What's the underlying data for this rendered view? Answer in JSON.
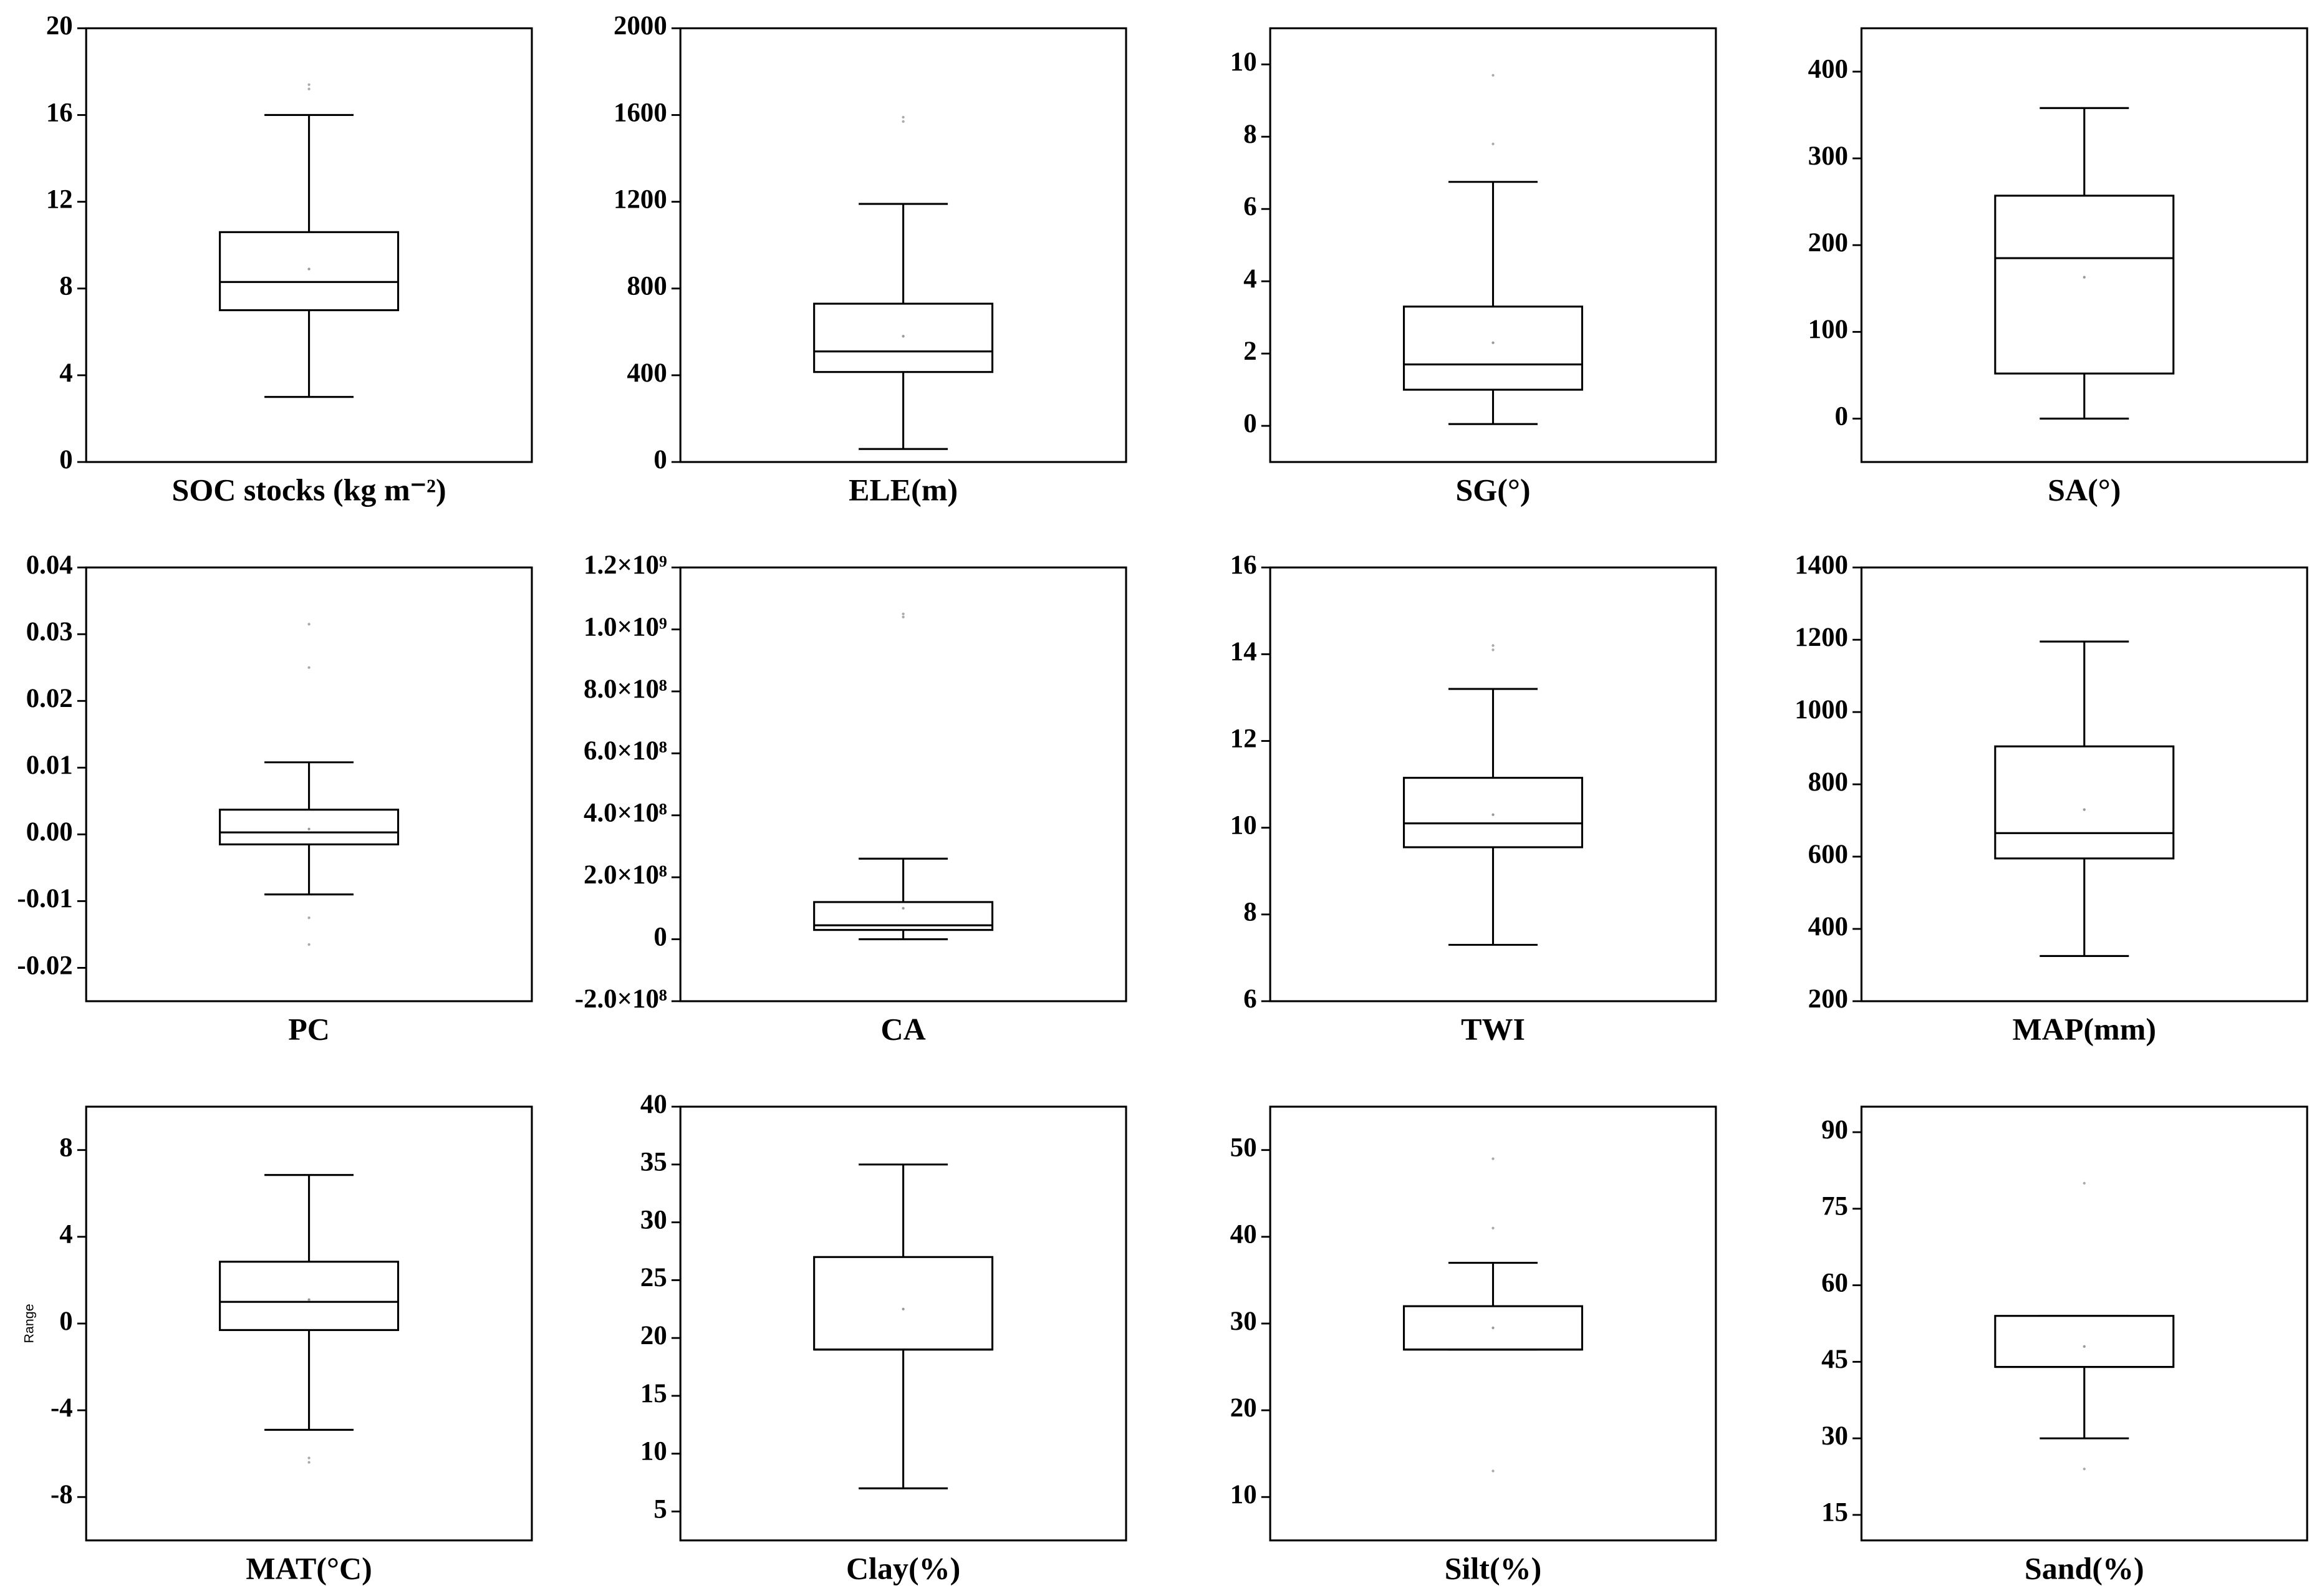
{
  "chart_data": [
    {
      "type": "box",
      "xlabel": "SOC stocks (kg m⁻²)",
      "ylim": [
        0,
        20
      ],
      "yticks": [
        0,
        4,
        8,
        12,
        16,
        20
      ],
      "whisker_low": 3,
      "q1": 7,
      "median": 8.3,
      "q3": 10.6,
      "whisker_high": 16,
      "mean": 8.9,
      "outliers": [
        17.2,
        17.4
      ]
    },
    {
      "type": "box",
      "xlabel": "ELE(m)",
      "ylim": [
        0,
        2000
      ],
      "yticks": [
        0,
        400,
        800,
        1200,
        1600,
        2000
      ],
      "whisker_low": 60,
      "q1": 415,
      "median": 510,
      "q3": 730,
      "whisker_high": 1190,
      "mean": 580,
      "outliers": [
        1570,
        1590
      ]
    },
    {
      "type": "box",
      "xlabel": "SG(°)",
      "ylim": [
        -1,
        11
      ],
      "yticks": [
        0,
        2,
        4,
        6,
        8,
        10
      ],
      "whisker_low": 0.05,
      "q1": 1.0,
      "median": 1.7,
      "q3": 3.3,
      "whisker_high": 6.75,
      "mean": 2.3,
      "outliers": [
        7.8,
        9.7
      ]
    },
    {
      "type": "box",
      "xlabel": "SA(°)",
      "ylim": [
        -50,
        450
      ],
      "yticks": [
        0,
        100,
        200,
        300,
        400
      ],
      "whisker_low": 0,
      "q1": 52,
      "median": 185,
      "q3": 257,
      "whisker_high": 358,
      "mean": 163,
      "outliers": []
    },
    {
      "type": "box",
      "xlabel": "PC",
      "ylim": [
        -0.025,
        0.04
      ],
      "yticks": [
        {
          "value": -0.02,
          "label": "-0.02"
        },
        {
          "value": -0.01,
          "label": "-0.01"
        },
        {
          "value": 0,
          "label": "0.00"
        },
        {
          "value": 0.01,
          "label": "0.01"
        },
        {
          "value": 0.02,
          "label": "0.02"
        },
        {
          "value": 0.03,
          "label": "0.03"
        },
        {
          "value": 0.04,
          "label": "0.04"
        }
      ],
      "whisker_low": -0.009,
      "q1": -0.0015,
      "median": 0.0003,
      "q3": 0.0037,
      "whisker_high": 0.0108,
      "mean": 0.0008,
      "outliers": [
        0.025,
        0.0315,
        -0.0125,
        -0.0165
      ]
    },
    {
      "type": "box",
      "xlabel": "CA",
      "ylim": [
        -200000000,
        1200000000
      ],
      "yticks": [
        {
          "value": -200000000,
          "label": "-2.0×10⁸"
        },
        0,
        {
          "value": 200000000,
          "label": "2.0×10⁸"
        },
        {
          "value": 400000000,
          "label": "4.0×10⁸"
        },
        {
          "value": 600000000,
          "label": "6.0×10⁸"
        },
        {
          "value": 800000000,
          "label": "8.0×10⁸"
        },
        {
          "value": 1000000000,
          "label": "1.0×10⁹"
        },
        {
          "value": 1200000000,
          "label": "1.2×10⁹"
        }
      ],
      "whisker_low": 0,
      "q1": 30000000,
      "median": 45000000,
      "q3": 120000000,
      "whisker_high": 260000000,
      "mean": 100000000,
      "outliers": [
        1040000000,
        1050000000
      ]
    },
    {
      "type": "box",
      "xlabel": "TWI",
      "ylim": [
        6,
        16
      ],
      "yticks": [
        6,
        8,
        10,
        12,
        14,
        16
      ],
      "whisker_low": 7.3,
      "q1": 9.55,
      "median": 10.1,
      "q3": 11.15,
      "whisker_high": 13.2,
      "mean": 10.3,
      "outliers": [
        14.1,
        14.2
      ]
    },
    {
      "type": "box",
      "xlabel": "MAP(mm)",
      "ylim": [
        200,
        1400
      ],
      "yticks": [
        200,
        400,
        600,
        800,
        1000,
        1200,
        1400
      ],
      "whisker_low": 325,
      "q1": 595,
      "median": 665,
      "q3": 905,
      "whisker_high": 1195,
      "mean": 730,
      "outliers": []
    },
    {
      "type": "box",
      "xlabel": "MAT(°C)",
      "ylabel": "Range",
      "ylim": [
        -10,
        10
      ],
      "yticks": [
        -8,
        -4,
        0,
        4,
        8
      ],
      "whisker_low": -4.9,
      "q1": -0.3,
      "median": 1.0,
      "q3": 2.85,
      "whisker_high": 6.85,
      "mean": 1.1,
      "outliers": [
        -6.2,
        -6.4
      ]
    },
    {
      "type": "box",
      "xlabel": "Clay(%)",
      "ylim": [
        2.5,
        40
      ],
      "yticks": [
        5,
        10,
        15,
        20,
        25,
        30,
        35,
        40
      ],
      "whisker_low": 7,
      "q1": 19,
      "median": 19,
      "q3": 27,
      "whisker_high": 35,
      "mean": 22.5,
      "outliers": []
    },
    {
      "type": "box",
      "xlabel": "Silt(%)",
      "ylim": [
        5,
        55
      ],
      "yticks": [
        10,
        20,
        30,
        40,
        50
      ],
      "whisker_low": 27,
      "q1": 27,
      "median": 27,
      "q3": 32,
      "whisker_high": 37,
      "mean": 29.5,
      "outliers": [
        41,
        49,
        13
      ]
    },
    {
      "type": "box",
      "xlabel": "Sand(%)",
      "ylim": [
        10,
        95
      ],
      "yticks": [
        15,
        30,
        45,
        60,
        75,
        90
      ],
      "whisker_low": 30,
      "q1": 44,
      "median": 44,
      "q3": 54,
      "whisker_high": 54,
      "mean": 48,
      "outliers": [
        80,
        24
      ]
    }
  ]
}
